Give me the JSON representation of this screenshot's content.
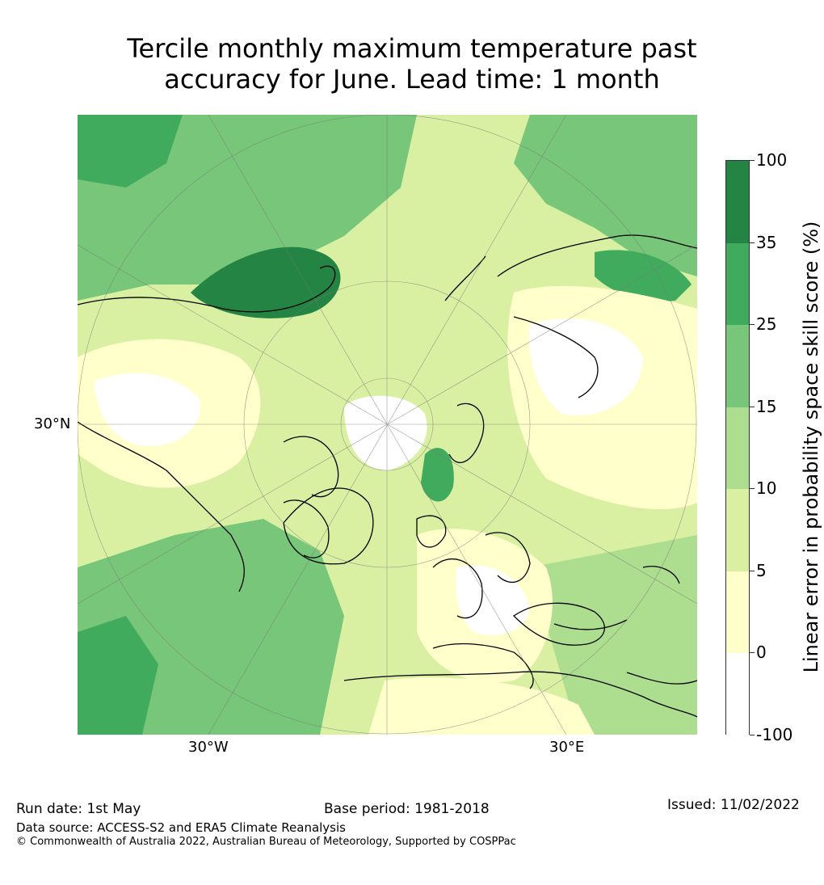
{
  "title": {
    "line1": "Tercile monthly maximum temperature past",
    "line2": "accuracy for June. Lead time: 1 month"
  },
  "map": {
    "projection": "north-polar-stereographic",
    "region": "Northern Hemisphere",
    "lat_label": "30°N",
    "lon_labels": [
      "30°W",
      "30°E"
    ]
  },
  "colorbar": {
    "label": "Linear error in probability space skill score (%)",
    "ticks": [
      "100",
      "35",
      "25",
      "15",
      "10",
      "5",
      "0",
      "-100"
    ],
    "bins": [
      {
        "min": 35,
        "max": 100,
        "color": "#238443"
      },
      {
        "min": 25,
        "max": 35,
        "color": "#41ab5d"
      },
      {
        "min": 15,
        "max": 25,
        "color": "#78c679"
      },
      {
        "min": 10,
        "max": 15,
        "color": "#addd8e"
      },
      {
        "min": 5,
        "max": 10,
        "color": "#d9f0a3"
      },
      {
        "min": 0,
        "max": 5,
        "color": "#ffffcc"
      },
      {
        "min": -100,
        "max": 0,
        "color": "#ffffff"
      }
    ]
  },
  "footer": {
    "run_date": "Run date: 1st May",
    "base_period": "Base period: 1981-2018",
    "issued": "Issued: 11/02/2022",
    "data_source": "Data source: ACCESS-S2 and ERA5 Climate Reanalysis",
    "copyright": "© Commonwealth of Australia 2022, Australian Bureau of Meteorology, Supported by COSPPac"
  }
}
